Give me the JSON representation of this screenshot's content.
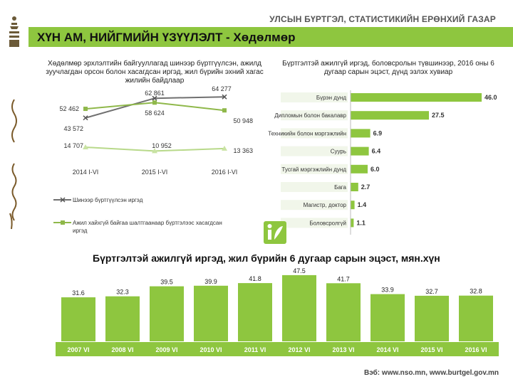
{
  "agency": "УЛСЫН БҮРТГЭЛ, СТАТИСТИКИЙН ЕРӨНХИЙ ГАЗАР",
  "page_title": "ХҮН АМ, НИЙГМИЙН ҮЗҮҮЛЭЛТ - Хөдөлмөр",
  "footer": "Вэб: www.nso.mn, www.burtgel.gov.mn",
  "colors": {
    "accent": "#8ec63f",
    "bar": "#8ec63f",
    "line1": "#707070",
    "line2": "#8fb84a"
  },
  "chart_data": [
    {
      "type": "line",
      "title": "Хөдөлмөр эрхлэлтийн байгууллагад шинээр бүртгүүлсэн, ажилд зуучлагдан орсон болон хасагдсан иргэд, жил бүрийн эхний хагас жилийн байдлаар",
      "categories": [
        "2014 I-VI",
        "2015 I-VI",
        "2016 I-VI"
      ],
      "series": [
        {
          "name": "Шинээр бүртгүүлсэн иргэд",
          "values": [
            43572,
            62861,
            64277
          ],
          "labels": [
            "43 572",
            "62 861",
            "64 277"
          ],
          "marker": "x"
        },
        {
          "name": "Ажил хайхгүй байгаа шалтгаанаар бүртгэлээс хасагдсан иргэд",
          "values": [
            52462,
            58624,
            50948
          ],
          "labels": [
            "52 462",
            "58 624",
            "50 948"
          ],
          "marker": "square"
        },
        {
          "name": "",
          "values": [
            14707,
            10952,
            13363
          ],
          "labels": [
            "14 707",
            "10 952",
            "13 363"
          ],
          "marker": "triangle"
        }
      ],
      "ylim": [
        0,
        70000
      ],
      "legend_position": "bottom"
    },
    {
      "type": "bar",
      "orientation": "horizontal",
      "title": "Бүртгэлтэй ажилгүй иргэд, боловсролын түвшинээр, 2016 оны 6 дугаар сарын эцэст, дүнд эзлэх хувиар",
      "categories": [
        "Бүрэн дунд",
        "Дипломын болон бакалавр",
        "Техникийн болон мэргэжлийн",
        "Суурь",
        "Тусгай мэргэжлийн дунд",
        "Бага",
        "Магистр, доктор",
        "Боловсролгүй"
      ],
      "values": [
        46.0,
        27.5,
        6.9,
        6.4,
        6.0,
        2.7,
        1.4,
        1.1
      ],
      "labels": [
        "46.0",
        "27.5",
        "6.9",
        "6.4",
        "6.0",
        "2.7",
        "1.4",
        "1.1"
      ],
      "xlim": [
        0,
        50
      ]
    },
    {
      "type": "bar",
      "title": "Бүртгэлтэй ажилгүй иргэд, жил бүрийн 6 дугаар сарын эцэст, мян.хүн",
      "categories": [
        "2007 VI",
        "2008 VI",
        "2009 VI",
        "2010 VI",
        "2011 VI",
        "2012 VI",
        "2013 VI",
        "2014 VI",
        "2015 VI",
        "2016 VI"
      ],
      "values": [
        31.6,
        32.3,
        39.5,
        39.9,
        41.8,
        47.5,
        41.7,
        33.9,
        32.7,
        32.8
      ],
      "labels": [
        "31.6",
        "32.3",
        "39.5",
        "39.9",
        "41.8",
        "47.5",
        "41.7",
        "33.9",
        "32.7",
        "32.8"
      ],
      "ylim": [
        0,
        50
      ]
    }
  ]
}
